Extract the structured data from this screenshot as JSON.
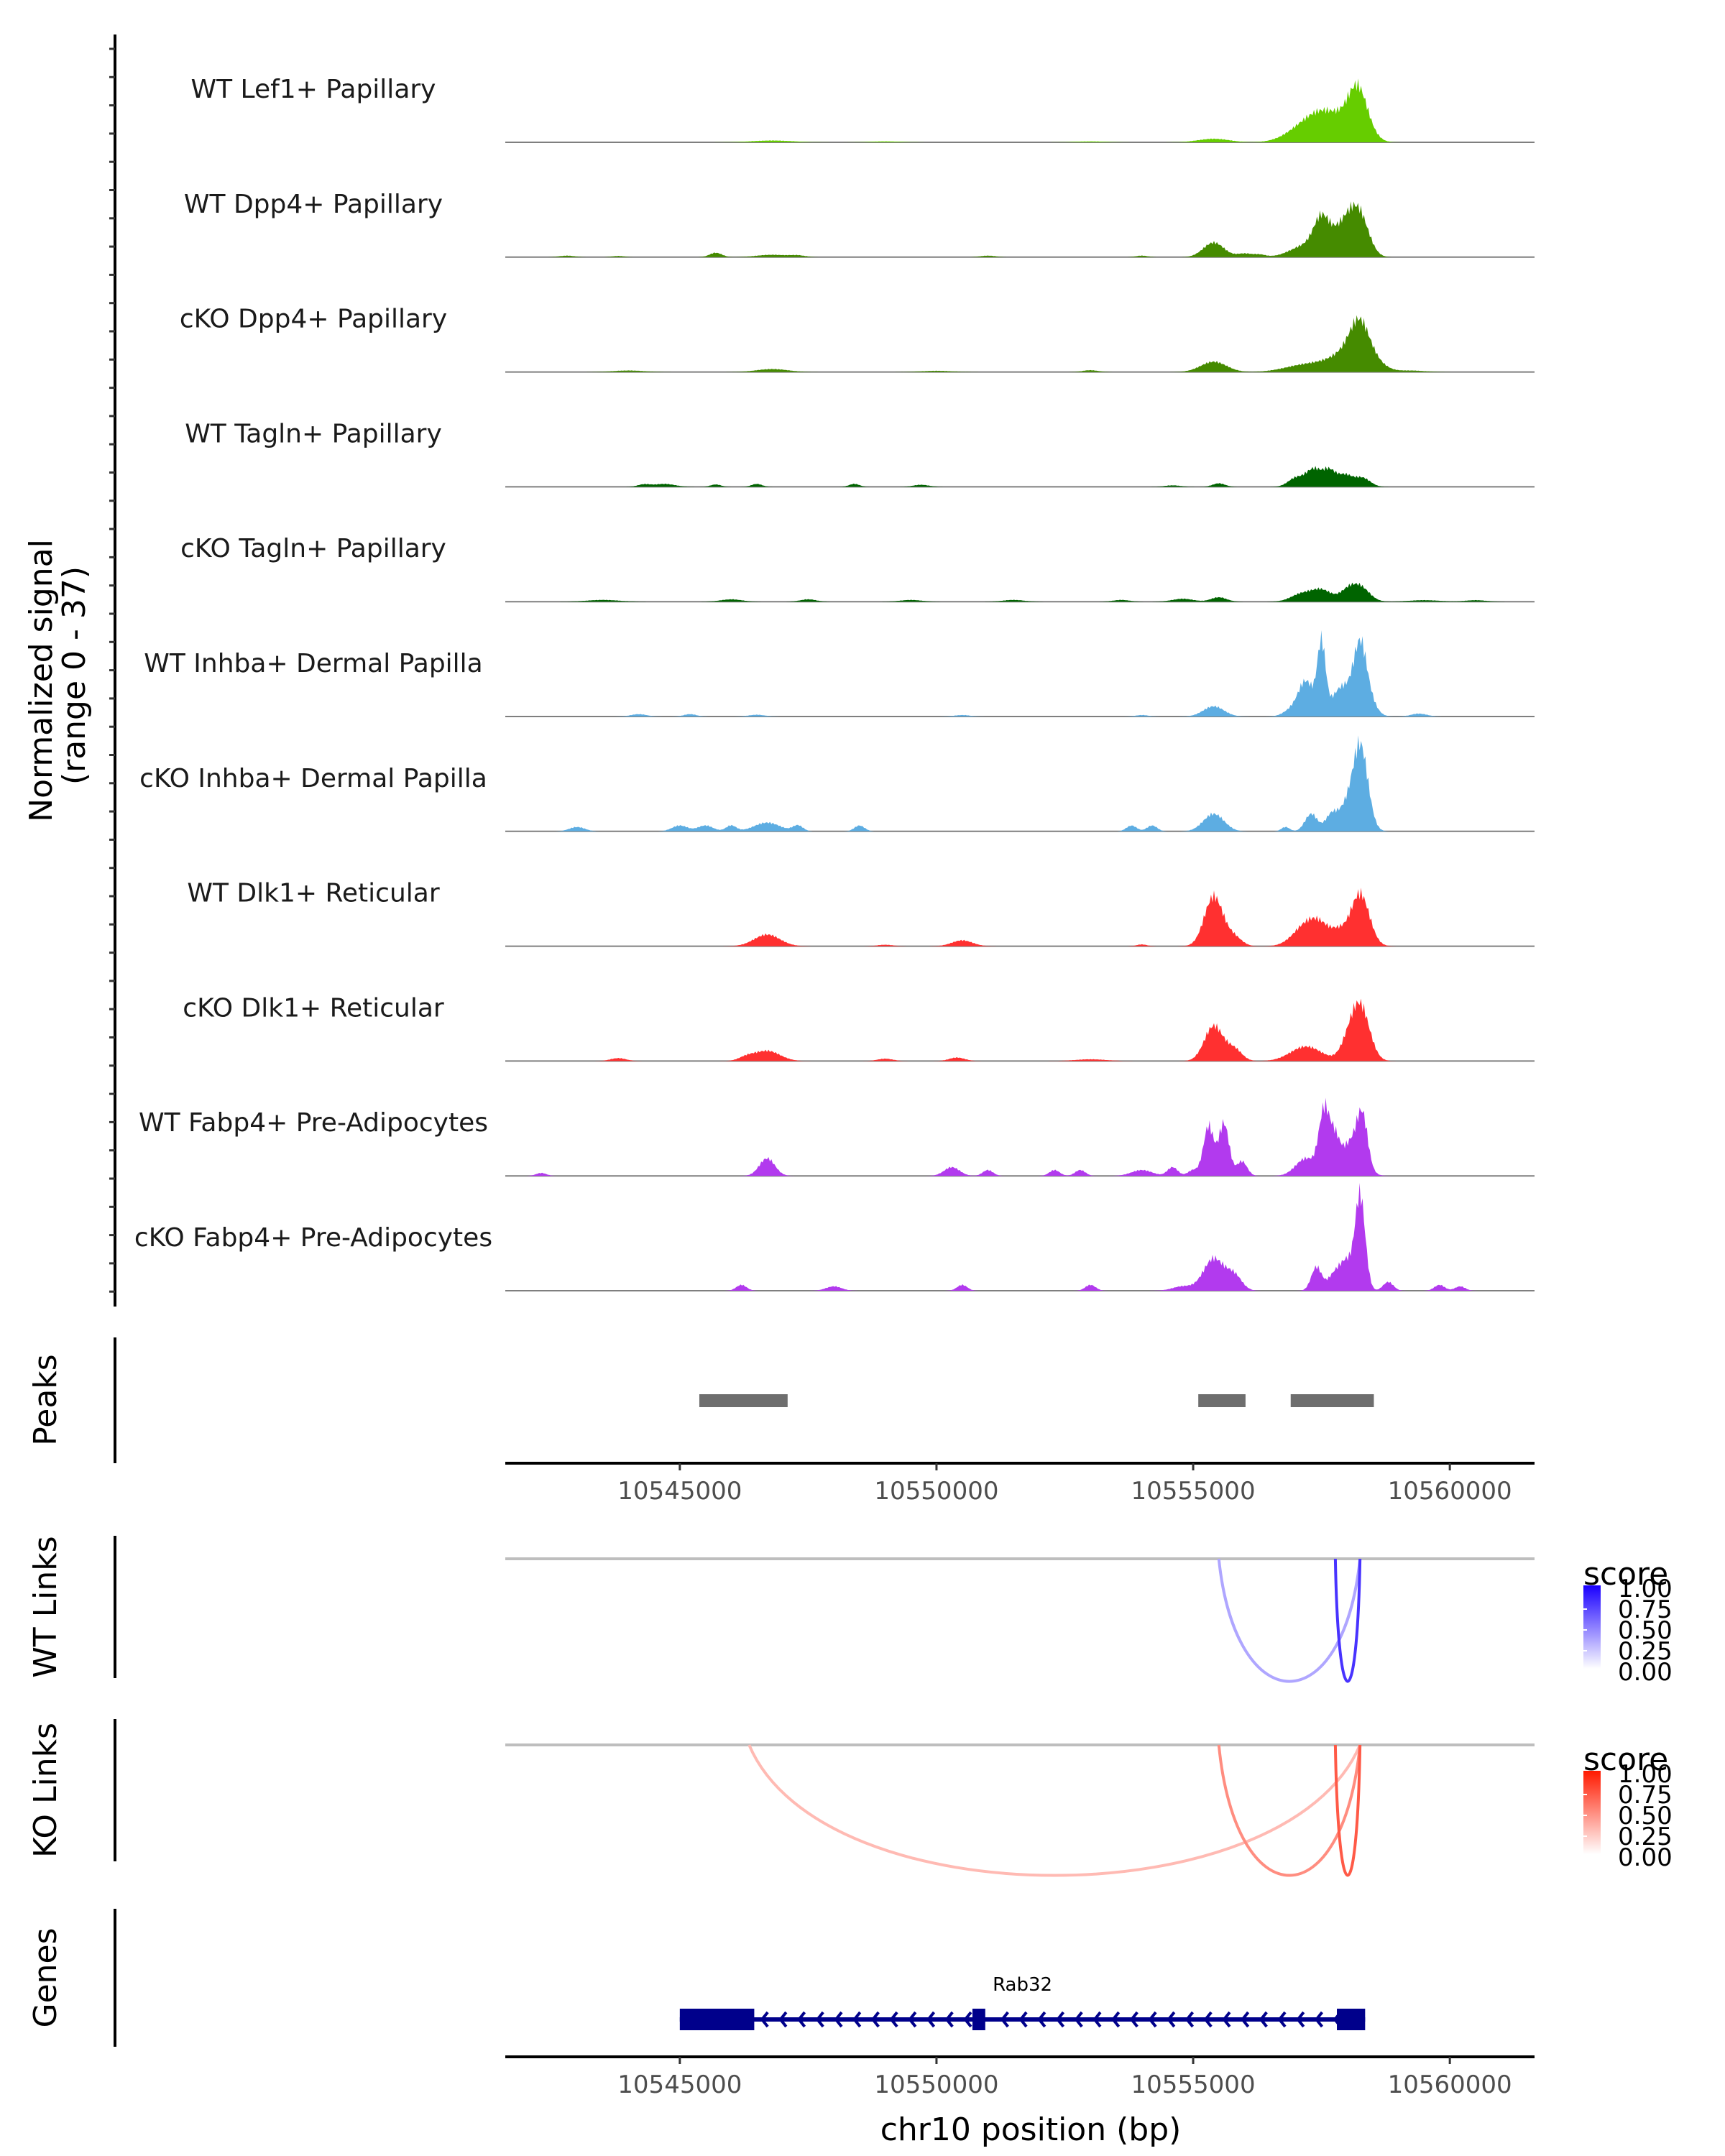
{
  "chart_data": {
    "type": "area",
    "title": "",
    "xlabel": "chr10 position (bp)",
    "ylabel": "Normalized signal\n(range 0 - 37)",
    "ylabel_lines": [
      "Normalized signal",
      "(range 0 - 37)"
    ],
    "ylim": [
      0,
      37
    ],
    "xlim": [
      10541600,
      10561650
    ],
    "x_ticks": [
      10545000,
      10550000,
      10555000,
      10560000
    ],
    "x_tick_labels": [
      "10545000",
      "10550000",
      "10555000",
      "10560000"
    ],
    "tracks": [
      {
        "name": "WT Lef1+ Papillary",
        "color": "#66CD00",
        "peaks": [
          [
            10555400,
            1.2,
            300
          ],
          [
            10557200,
            5.5,
            350
          ],
          [
            10557600,
            7,
            300
          ],
          [
            10558000,
            4,
            250
          ],
          [
            10558200,
            13.5,
            180
          ],
          [
            10558350,
            3,
            200
          ],
          [
            10546800,
            0.6,
            400
          ],
          [
            10549000,
            0.3,
            300
          ],
          [
            10553000,
            0.3,
            300
          ]
        ]
      },
      {
        "name": "WT Dpp4+ Papillary",
        "color": "#458B00",
        "peaks": [
          [
            10555400,
            5,
            200
          ],
          [
            10557200,
            4,
            300
          ],
          [
            10557500,
            10,
            150
          ],
          [
            10557800,
            4,
            250
          ],
          [
            10558000,
            8,
            200
          ],
          [
            10558250,
            12,
            180
          ],
          [
            10545700,
            1.5,
            120
          ],
          [
            10546800,
            0.8,
            300
          ],
          [
            10542800,
            0.5,
            150
          ],
          [
            10543800,
            0.4,
            120
          ],
          [
            10551000,
            0.5,
            150
          ],
          [
            10554000,
            0.5,
            120
          ],
          [
            10556000,
            1.2,
            150
          ],
          [
            10556300,
            0.8,
            120
          ],
          [
            10547300,
            0.5,
            150
          ]
        ]
      },
      {
        "name": "cKO Dpp4+ Papillary",
        "color": "#458B00",
        "peaks": [
          [
            10555400,
            3.5,
            250
          ],
          [
            10557200,
            2.5,
            400
          ],
          [
            10557800,
            3,
            300
          ],
          [
            10558100,
            5,
            250
          ],
          [
            10558250,
            12,
            180
          ],
          [
            10558550,
            3,
            200
          ],
          [
            10546800,
            1,
            300
          ],
          [
            10544000,
            0.5,
            300
          ],
          [
            10553000,
            0.6,
            150
          ],
          [
            10550000,
            0.4,
            300
          ],
          [
            10559200,
            0.5,
            300
          ]
        ]
      },
      {
        "name": "WT Tagln+ Papillary",
        "color": "#006400",
        "peaks": [
          [
            10557000,
            3,
            150
          ],
          [
            10557350,
            6,
            150
          ],
          [
            10557650,
            5,
            120
          ],
          [
            10557950,
            4,
            150
          ],
          [
            10558300,
            3,
            150
          ],
          [
            10544700,
            1,
            200
          ],
          [
            10545700,
            0.8,
            100
          ],
          [
            10546500,
            1,
            100
          ],
          [
            10548400,
            1,
            100
          ],
          [
            10549700,
            0.7,
            150
          ],
          [
            10555500,
            1.2,
            120
          ],
          [
            10554600,
            0.5,
            150
          ],
          [
            10544300,
            0.8,
            120
          ]
        ]
      },
      {
        "name": "cKO Tagln+ Papillary",
        "color": "#006400",
        "peaks": [
          [
            10557100,
            2.5,
            200
          ],
          [
            10557500,
            4,
            200
          ],
          [
            10558000,
            3,
            150
          ],
          [
            10558250,
            5,
            180
          ],
          [
            10555500,
            1.5,
            150
          ],
          [
            10554800,
            1,
            200
          ],
          [
            10546000,
            0.8,
            200
          ],
          [
            10543500,
            0.6,
            300
          ],
          [
            10547500,
            0.8,
            150
          ],
          [
            10549500,
            0.6,
            200
          ],
          [
            10551500,
            0.6,
            200
          ],
          [
            10553600,
            0.6,
            150
          ],
          [
            10559500,
            0.5,
            300
          ],
          [
            10560500,
            0.5,
            200
          ]
        ]
      },
      {
        "name": "WT Inhba+ Dermal Papilla",
        "color": "#5DADE2",
        "peaks": [
          [
            10555400,
            3.5,
            200
          ],
          [
            10557200,
            12,
            150
          ],
          [
            10557500,
            24,
            80
          ],
          [
            10557800,
            4,
            150
          ],
          [
            10558000,
            8,
            200
          ],
          [
            10558250,
            19,
            120
          ],
          [
            10558400,
            6,
            150
          ],
          [
            10556900,
            2,
            150
          ],
          [
            10544200,
            0.8,
            150
          ],
          [
            10545200,
            0.8,
            120
          ],
          [
            10546500,
            0.6,
            150
          ],
          [
            10550500,
            0.5,
            150
          ],
          [
            10554000,
            0.5,
            120
          ],
          [
            10559400,
            1,
            150
          ]
        ]
      },
      {
        "name": "cKO Inhba+ Dermal Papilla",
        "color": "#5DADE2",
        "peaks": [
          [
            10558250,
            30,
            150
          ],
          [
            10555400,
            6,
            200
          ],
          [
            10557300,
            6,
            120
          ],
          [
            10557700,
            6,
            120
          ],
          [
            10557950,
            6,
            120
          ],
          [
            10556800,
            1.5,
            80
          ],
          [
            10543000,
            1.5,
            150
          ],
          [
            10545000,
            2,
            150
          ],
          [
            10545500,
            2,
            150
          ],
          [
            10546000,
            2,
            100
          ],
          [
            10546700,
            3,
            250
          ],
          [
            10547300,
            2,
            100
          ],
          [
            10548500,
            2,
            100
          ],
          [
            10553800,
            2,
            100
          ],
          [
            10554200,
            2,
            100
          ]
        ]
      },
      {
        "name": "WT Dlk1+ Reticular",
        "color": "#FF3030",
        "peaks": [
          [
            10555400,
            17,
            180
          ],
          [
            10555800,
            3,
            150
          ],
          [
            10557200,
            7,
            250
          ],
          [
            10557500,
            5,
            200
          ],
          [
            10557850,
            4,
            150
          ],
          [
            10558250,
            18,
            180
          ],
          [
            10546700,
            4,
            250
          ],
          [
            10550500,
            2,
            200
          ],
          [
            10554000,
            0.6,
            100
          ],
          [
            10549000,
            0.5,
            150
          ]
        ]
      },
      {
        "name": "cKO Dlk1+ Reticular",
        "color": "#FF3030",
        "peaks": [
          [
            10555400,
            12,
            180
          ],
          [
            10555800,
            4,
            150
          ],
          [
            10557200,
            5,
            300
          ],
          [
            10558000,
            4,
            150
          ],
          [
            10558250,
            19,
            180
          ],
          [
            10546700,
            3.5,
            250
          ],
          [
            10546300,
            1.2,
            150
          ],
          [
            10543800,
            1,
            150
          ],
          [
            10550400,
            1.2,
            150
          ],
          [
            10553000,
            0.6,
            300
          ],
          [
            10549000,
            0.8,
            150
          ]
        ]
      },
      {
        "name": "WT Fabp4+ Pre-Adipocytes",
        "color": "#B23AEE",
        "peaks": [
          [
            10555300,
            17,
            100
          ],
          [
            10555600,
            18,
            100
          ],
          [
            10555950,
            5,
            100
          ],
          [
            10557200,
            6,
            200
          ],
          [
            10557550,
            21,
            100
          ],
          [
            10557750,
            11,
            100
          ],
          [
            10558100,
            12,
            200
          ],
          [
            10558300,
            15,
            100
          ],
          [
            10546700,
            6,
            150
          ],
          [
            10542300,
            1,
            100
          ],
          [
            10550300,
            3,
            150
          ],
          [
            10551000,
            2,
            100
          ],
          [
            10552300,
            2,
            100
          ],
          [
            10552800,
            2,
            100
          ],
          [
            10554000,
            2,
            200
          ],
          [
            10554600,
            3,
            100
          ],
          [
            10555000,
            2,
            100
          ]
        ]
      },
      {
        "name": "cKO Fabp4+ Pre-Adipocytes",
        "color": "#B23AEE",
        "peaks": [
          [
            10558250,
            33,
            100
          ],
          [
            10555400,
            11,
            200
          ],
          [
            10555800,
            5,
            150
          ],
          [
            10557400,
            8,
            100
          ],
          [
            10557800,
            7,
            150
          ],
          [
            10558000,
            7,
            100
          ],
          [
            10546200,
            2,
            100
          ],
          [
            10548000,
            1.5,
            150
          ],
          [
            10550500,
            2,
            100
          ],
          [
            10553000,
            2,
            100
          ],
          [
            10554800,
            1.5,
            200
          ],
          [
            10558800,
            3,
            100
          ],
          [
            10559800,
            2,
            100
          ],
          [
            10560200,
            1.5,
            100
          ]
        ]
      }
    ],
    "peaks_track": {
      "label": "Peaks",
      "color": "#6E6E6E",
      "regions": [
        [
          10545380,
          10547100
        ],
        [
          10555100,
          10556020
        ],
        [
          10556900,
          10558520
        ]
      ]
    },
    "wt_links": {
      "label": "WT Links",
      "legend_title": "score",
      "color_high": "#1A00FF",
      "color_low": "#FFFFFF",
      "links": [
        {
          "start": 10555500,
          "end": 10558250,
          "score": 0.35
        },
        {
          "start": 10557770,
          "end": 10558250,
          "score": 0.8
        }
      ]
    },
    "ko_links": {
      "label": "KO Links",
      "legend_title": "score",
      "color_high": "#FF1A00",
      "color_low": "#FFFFFF",
      "links": [
        {
          "start": 10546350,
          "end": 10558250,
          "score": 0.3
        },
        {
          "start": 10555500,
          "end": 10558250,
          "score": 0.5
        },
        {
          "start": 10557770,
          "end": 10558250,
          "score": 0.72
        }
      ]
    },
    "legend_ticks": [
      "1.00",
      "0.75",
      "0.50",
      "0.25",
      "0.00"
    ],
    "genes": {
      "label": "Genes",
      "color": "#00008B",
      "gene": {
        "name": "Rab32",
        "strand": "-",
        "start": 10545000,
        "end": 10558350,
        "exons": [
          [
            10545000,
            10546450
          ],
          [
            10550700,
            10550950
          ],
          [
            10557800,
            10558350
          ]
        ]
      }
    }
  }
}
